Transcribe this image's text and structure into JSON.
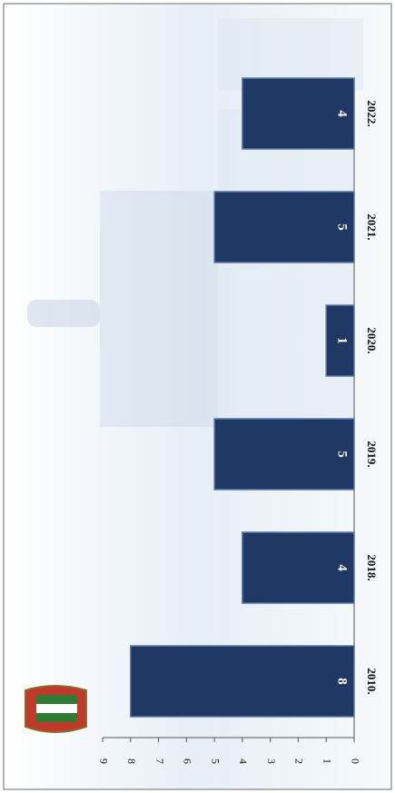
{
  "chart_data": {
    "type": "bar",
    "orientation": "horizontal",
    "categories": [
      "2010.",
      "2018.",
      "2019.",
      "2020.",
      "2021.",
      "2022."
    ],
    "values": [
      8,
      4,
      5,
      1,
      5,
      4
    ],
    "color": "#1f3864",
    "ylim": [
      0,
      9
    ],
    "yticks": [
      0,
      1,
      2,
      3,
      4,
      5,
      6,
      7,
      8,
      9
    ],
    "grid": false
  }
}
